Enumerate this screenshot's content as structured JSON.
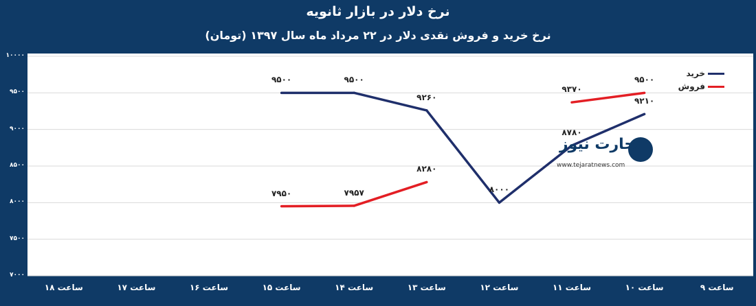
{
  "header": {
    "title": "نرخ دلار در بازار ثانویه",
    "subtitle": "نرخ خرید و فروش نقدی دلار در ۲۲ مرداد ماه سال ۱۳۹۷ (تومان)"
  },
  "logo": {
    "name": "تجارت نیوز",
    "url": "www.tejaratnews.com"
  },
  "colors": {
    "frame": "#0f3a66",
    "buy": "#1f2f6b",
    "sell": "#e31e24",
    "grid": "#d9d9d9"
  },
  "chart_data": {
    "type": "line",
    "title": "نرخ دلار در بازار ثانویه",
    "subtitle": "نرخ خرید و فروش نقدی دلار در ۲۲ مرداد ماه سال ۱۳۹۷ (تومان)",
    "categories": [
      "ساعت ۹",
      "ساعت ۱۰",
      "ساعت ۱۱",
      "ساعت ۱۲",
      "ساعت ۱۳",
      "ساعت ۱۴",
      "ساعت ۱۵",
      "ساعت ۱۶",
      "ساعت ۱۷",
      "ساعت ۱۸"
    ],
    "y_ticks": [
      "۷۰۰۰",
      "۷۵۰۰",
      "۸۰۰۰",
      "۸۵۰۰",
      "۹۰۰۰",
      "۹۵۰۰",
      "۱۰۰۰۰"
    ],
    "ylim": [
      7000,
      10000
    ],
    "grid": true,
    "legend_position": "top-right",
    "series": [
      {
        "name": "خرید",
        "values": [
          null,
          9210,
          8780,
          8000,
          9260,
          9500,
          9500,
          null,
          null,
          null
        ],
        "labels": [
          null,
          "۹۲۱۰",
          "۸۷۸۰",
          "۸۰۰۰",
          "۹۲۶۰",
          "۹۵۰۰",
          "۹۵۰۰",
          null,
          null,
          null
        ]
      },
      {
        "name": "فروش",
        "values": [
          null,
          9500,
          9370,
          null,
          8280,
          7957,
          7950,
          null,
          null,
          null
        ],
        "labels": [
          null,
          "۹۵۰۰",
          "۹۳۷۰",
          null,
          "۸۲۸۰",
          "۷۹۵۷",
          "۷۹۵۰",
          null,
          null,
          null
        ]
      }
    ]
  }
}
